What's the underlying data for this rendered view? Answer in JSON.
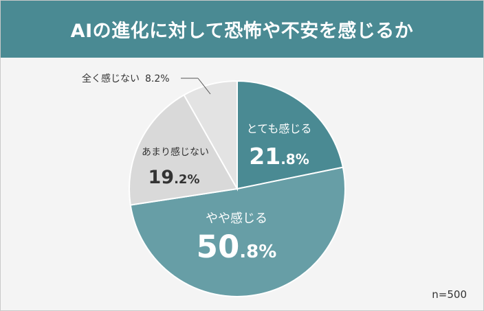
{
  "title": "AIの進化に対して恐怖や不安を感じるか",
  "sample_note": "n=500",
  "colors": {
    "header_bg": "#4a8a93",
    "slice_strong": "#4a8a93",
    "slice_somewhat": "#679ea6",
    "slice_notmuch": "#d9d9d9",
    "slice_none": "#e3e3e3"
  },
  "chart_data": {
    "type": "pie",
    "title": "AIの進化に対して恐怖や不安を感じるか",
    "start": "12 o'clock",
    "direction": "clockwise",
    "slices": [
      {
        "label": "とても感じる",
        "value": 21.8,
        "value_int": "21",
        "value_dec": ".8%",
        "color": "#4a8a93"
      },
      {
        "label": "やや感じる",
        "value": 50.8,
        "value_int": "50",
        "value_dec": ".8%",
        "color": "#679ea6"
      },
      {
        "label": "あまり感じない",
        "value": 19.2,
        "value_int": "19",
        "value_dec": ".2%",
        "color": "#d9d9d9"
      },
      {
        "label": "全く感じない",
        "value": 8.2,
        "value_text": "8.2%",
        "color": "#e3e3e3"
      }
    ]
  }
}
